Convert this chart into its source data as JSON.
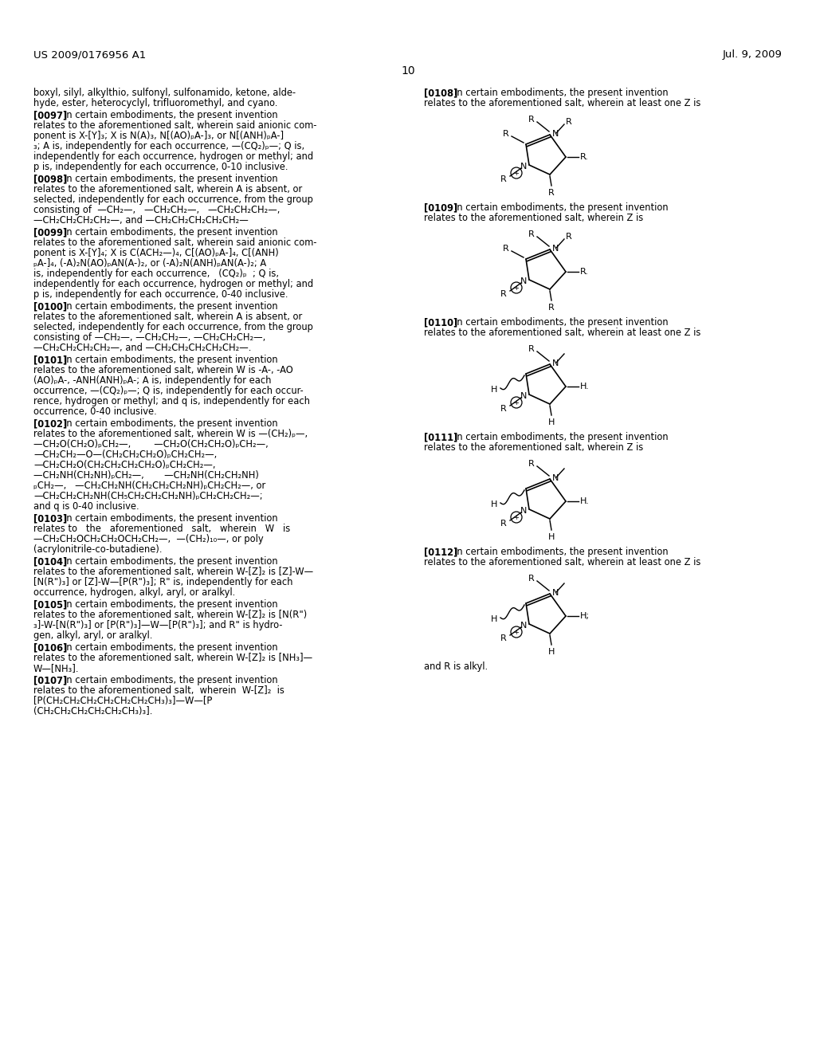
{
  "header_left": "US 2009/0176956 A1",
  "header_right": "Jul. 9, 2009",
  "page_number": "10",
  "background_color": "#ffffff",
  "intro_text_line1": "boxyl, silyl, alkylthio, sulfonyl, sulfonamido, ketone, alde-",
  "intro_text_line2": "hyde, ester, heterocyclyl, trifluoromethyl, and cyano.",
  "left_paragraphs": [
    {
      "tag": "0097",
      "lines": [
        "In certain embodiments, the present invention",
        "relates to the aforementioned salt, wherein said anionic com-",
        "ponent is X-[Y]₃; X is N(A)₃, N[(AO)ₚA-]₃, or N[(ANH)ₚA-]",
        "₃; A is, independently for each occurrence, —(CQ₂)ₚ—; Q is,",
        "independently for each occurrence, hydrogen or methyl; and",
        "p is, independently for each occurrence, 0-10 inclusive."
      ]
    },
    {
      "tag": "0098",
      "lines": [
        "In certain embodiments, the present invention",
        "relates to the aforementioned salt, wherein A is absent, or",
        "selected, independently for each occurrence, from the group",
        "consisting of  —CH₂—,   —CH₂CH₂—,   —CH₂CH₂CH₂—,",
        "—CH₂CH₂CH₂CH₂—, and —CH₂CH₂CH₂CH₂CH₂—"
      ]
    },
    {
      "tag": "0099",
      "lines": [
        "In certain embodiments, the present invention",
        "relates to the aforementioned salt, wherein said anionic com-",
        "ponent is X-[Y]₄; X is C(ACH₂—)₄, C[(AO)ₚA-]₄, C[(ANH)",
        "ₚA-]₄, (-A)₂N(AO)ₚAN(A-)₂, or (-A)₂N(ANH)ₚAN(A-)₂; A",
        "is, independently for each occurrence,   (CQ₂)ₚ  ; Q is,",
        "independently for each occurrence, hydrogen or methyl; and",
        "p is, independently for each occurrence, 0-40 inclusive."
      ]
    },
    {
      "tag": "0100",
      "lines": [
        "In certain embodiments, the present invention",
        "relates to the aforementioned salt, wherein A is absent, or",
        "selected, independently for each occurrence, from the group",
        "consisting of —CH₂—, —CH₂CH₂—, —CH₂CH₂CH₂—,",
        "—CH₂CH₂CH₂CH₂—, and —CH₂CH₂CH₂CH₂CH₂—."
      ]
    },
    {
      "tag": "0101",
      "lines": [
        "In certain embodiments, the present invention",
        "relates to the aforementioned salt, wherein W is -A-, -AO",
        "(AO)ₚA-, -ANH(ANH)ₚA-; A is, independently for each",
        "occurrence, —(CQ₂)ₚ—; Q is, independently for each occur-",
        "rence, hydrogen or methyl; and q is, independently for each",
        "occurrence, 0-40 inclusive."
      ]
    },
    {
      "tag": "0102",
      "lines": [
        "In certain embodiments, the present invention",
        "relates to the aforementioned salt, wherein W is —(CH₂)ₚ—,",
        "—CH₂O(CH₂O)ₚCH₂—,        —CH₂O(CH₂CH₂O)ₚCH₂—,",
        "—CH₂CH₂—O—(CH₂CH₂CH₂O)ₚCH₂CH₂—,",
        "—CH₂CH₂O(CH₂CH₂CH₂CH₂O)ₚCH₂CH₂—,",
        "—CH₂NH(CH₂NH)ₚCH₂—,       —CH₂NH(CH₂CH₂NH)",
        "ₚCH₂—,   —CH₂CH₂NH(CH₂CH₂CH₂NH)ₚCH₂CH₂—, or",
        "—CH₂CH₂CH₂NH(CH₅CH₂CH₂CH₂NH)ₚCH₂CH₂CH₂—;",
        "and q is 0-40 inclusive."
      ]
    },
    {
      "tag": "0103",
      "lines": [
        "In certain embodiments, the present invention",
        "relates to   the   aforementioned   salt,   wherein   W   is",
        "—CH₂CH₂OCH₂CH₂OCH₂CH₂—,  —(CH₂)₁₀—, or poly",
        "(acrylonitrile-co-butadiene)."
      ]
    },
    {
      "tag": "0104",
      "lines": [
        "In certain embodiments, the present invention",
        "relates to the aforementioned salt, wherein W-[Z]₂ is [Z]-W—",
        "[N(R\")₃] or [Z]-W—[P(R\")₃]; R\" is, independently for each",
        "occurrence, hydrogen, alkyl, aryl, or aralkyl."
      ]
    },
    {
      "tag": "0105",
      "lines": [
        "In certain embodiments, the present invention",
        "relates to the aforementioned salt, wherein W-[Z]₂ is [N(R\")",
        "₃]-W-[N(R\")₃] or [P(R\")₃]—W—[P(R\")₃]; and R\" is hydro-",
        "gen, alkyl, aryl, or aralkyl."
      ]
    },
    {
      "tag": "0106",
      "lines": [
        "In certain embodiments, the present invention",
        "relates to the aforementioned salt, wherein W-[Z]₂ is [NH₃]—",
        "W—[NH₃]."
      ]
    },
    {
      "tag": "0107",
      "lines": [
        "In certain embodiments, the present invention",
        "relates to the aforementioned salt,  wherein  W-[Z]₂  is",
        "[P(CH₂CH₂CH₂CH₂CH₂CH₂CH₃)₃]—W—[P",
        "(CH₂CH₂CH₂CH₂CH₂CH₃)₃]."
      ]
    }
  ],
  "right_paragraphs": [
    {
      "tag": "0108",
      "lines": [
        "In certain embodiments, the present invention",
        "relates to the aforementioned salt, wherein at least one Z is"
      ],
      "structure": "full_R"
    },
    {
      "tag": "0109",
      "lines": [
        "In certain embodiments, the present invention",
        "relates to the aforementioned salt, wherein Z is"
      ],
      "structure": "full_R"
    },
    {
      "tag": "0110",
      "lines": [
        "In certain embodiments, the present invention",
        "relates to the aforementioned salt, wherein at least one Z is"
      ],
      "structure": "wavy_H"
    },
    {
      "tag": "0111",
      "lines": [
        "In certain embodiments, the present invention",
        "relates to the aforementioned salt, wherein Z is"
      ],
      "structure": "wavy_H"
    },
    {
      "tag": "0112",
      "lines": [
        "In certain embodiments, the present invention",
        "relates to the aforementioned salt, wherein at least one Z is"
      ],
      "structure": "wavy_H_semi"
    }
  ],
  "footer": "and R is alkyl."
}
